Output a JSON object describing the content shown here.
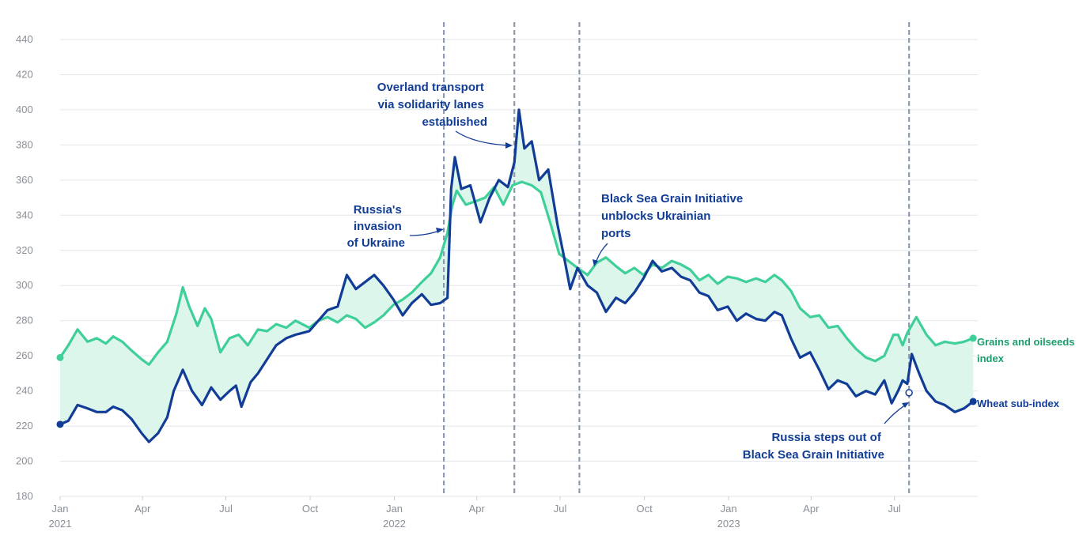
{
  "chart_data": {
    "type": "line",
    "x_axis": {
      "ticks": [
        {
          "date": "2021-01-01",
          "label": "Jan",
          "sub": "2021"
        },
        {
          "date": "2021-04-01",
          "label": "Apr",
          "sub": ""
        },
        {
          "date": "2021-07-01",
          "label": "Jul",
          "sub": ""
        },
        {
          "date": "2021-10-01",
          "label": "Oct",
          "sub": ""
        },
        {
          "date": "2022-01-01",
          "label": "Jan",
          "sub": "2022"
        },
        {
          "date": "2022-04-01",
          "label": "Apr",
          "sub": ""
        },
        {
          "date": "2022-07-01",
          "label": "Jul",
          "sub": ""
        },
        {
          "date": "2022-10-01",
          "label": "Oct",
          "sub": ""
        },
        {
          "date": "2023-01-01",
          "label": "Jan",
          "sub": "2023"
        },
        {
          "date": "2023-04-01",
          "label": "Apr",
          "sub": ""
        },
        {
          "date": "2023-07-01",
          "label": "Jul",
          "sub": ""
        }
      ],
      "range": [
        "2021-01-01",
        "2023-09-30"
      ]
    },
    "y_axis": {
      "ticks": [
        180,
        200,
        220,
        240,
        260,
        280,
        300,
        320,
        340,
        360,
        380,
        400,
        420,
        440
      ],
      "ylim": [
        180,
        440
      ]
    },
    "grid": true,
    "series": [
      {
        "name": "Grains and oilseeds index",
        "label_lines": [
          "Grains and oilseeds",
          "index"
        ],
        "color": "#3fcf98",
        "points": [
          [
            "2021-01-01",
            259
          ],
          [
            "2021-01-10",
            266
          ],
          [
            "2021-01-20",
            275
          ],
          [
            "2021-01-31",
            268
          ],
          [
            "2021-02-10",
            270
          ],
          [
            "2021-02-20",
            267
          ],
          [
            "2021-02-28",
            271
          ],
          [
            "2021-03-10",
            268
          ],
          [
            "2021-03-20",
            263
          ],
          [
            "2021-03-31",
            258
          ],
          [
            "2021-04-08",
            255
          ],
          [
            "2021-04-18",
            262
          ],
          [
            "2021-04-28",
            268
          ],
          [
            "2021-05-08",
            284
          ],
          [
            "2021-05-15",
            299
          ],
          [
            "2021-05-22",
            288
          ],
          [
            "2021-05-31",
            277
          ],
          [
            "2021-06-08",
            287
          ],
          [
            "2021-06-15",
            281
          ],
          [
            "2021-06-25",
            262
          ],
          [
            "2021-07-05",
            270
          ],
          [
            "2021-07-15",
            272
          ],
          [
            "2021-07-25",
            266
          ],
          [
            "2021-08-05",
            275
          ],
          [
            "2021-08-15",
            274
          ],
          [
            "2021-08-25",
            278
          ],
          [
            "2021-09-05",
            276
          ],
          [
            "2021-09-15",
            280
          ],
          [
            "2021-09-30",
            276
          ],
          [
            "2021-10-10",
            280
          ],
          [
            "2021-10-20",
            282
          ],
          [
            "2021-10-31",
            279
          ],
          [
            "2021-11-10",
            283
          ],
          [
            "2021-11-20",
            281
          ],
          [
            "2021-11-30",
            276
          ],
          [
            "2021-12-10",
            279
          ],
          [
            "2021-12-20",
            283
          ],
          [
            "2021-12-31",
            289
          ],
          [
            "2022-01-10",
            292
          ],
          [
            "2022-01-20",
            296
          ],
          [
            "2022-01-31",
            302
          ],
          [
            "2022-02-10",
            307
          ],
          [
            "2022-02-20",
            316
          ],
          [
            "2022-02-28",
            330
          ],
          [
            "2022-03-05",
            345
          ],
          [
            "2022-03-10",
            354
          ],
          [
            "2022-03-20",
            346
          ],
          [
            "2022-03-31",
            348
          ],
          [
            "2022-04-10",
            350
          ],
          [
            "2022-04-20",
            356
          ],
          [
            "2022-04-30",
            346
          ],
          [
            "2022-05-10",
            357
          ],
          [
            "2022-05-20",
            359
          ],
          [
            "2022-05-31",
            357
          ],
          [
            "2022-06-10",
            353
          ],
          [
            "2022-06-20",
            336
          ],
          [
            "2022-06-30",
            318
          ],
          [
            "2022-07-10",
            314
          ],
          [
            "2022-07-20",
            310
          ],
          [
            "2022-07-31",
            306
          ],
          [
            "2022-08-10",
            313
          ],
          [
            "2022-08-20",
            316
          ],
          [
            "2022-08-31",
            311
          ],
          [
            "2022-09-10",
            307
          ],
          [
            "2022-09-20",
            310
          ],
          [
            "2022-09-30",
            306
          ],
          [
            "2022-10-10",
            312
          ],
          [
            "2022-10-20",
            310
          ],
          [
            "2022-10-31",
            314
          ],
          [
            "2022-11-10",
            312
          ],
          [
            "2022-11-20",
            309
          ],
          [
            "2022-11-30",
            303
          ],
          [
            "2022-12-10",
            306
          ],
          [
            "2022-12-20",
            301
          ],
          [
            "2022-12-31",
            305
          ],
          [
            "2023-01-10",
            304
          ],
          [
            "2023-01-20",
            302
          ],
          [
            "2023-01-31",
            304
          ],
          [
            "2023-02-10",
            302
          ],
          [
            "2023-02-20",
            306
          ],
          [
            "2023-02-28",
            303
          ],
          [
            "2023-03-10",
            297
          ],
          [
            "2023-03-20",
            287
          ],
          [
            "2023-03-31",
            282
          ],
          [
            "2023-04-10",
            283
          ],
          [
            "2023-04-20",
            276
          ],
          [
            "2023-04-30",
            277
          ],
          [
            "2023-05-10",
            270
          ],
          [
            "2023-05-20",
            264
          ],
          [
            "2023-05-31",
            259
          ],
          [
            "2023-06-10",
            257
          ],
          [
            "2023-06-20",
            260
          ],
          [
            "2023-06-30",
            272
          ],
          [
            "2023-07-05",
            272
          ],
          [
            "2023-07-10",
            266
          ],
          [
            "2023-07-15",
            273
          ],
          [
            "2023-07-25",
            282
          ],
          [
            "2023-08-05",
            272
          ],
          [
            "2023-08-15",
            266
          ],
          [
            "2023-08-25",
            268
          ],
          [
            "2023-09-05",
            267
          ],
          [
            "2023-09-15",
            268
          ],
          [
            "2023-09-25",
            270
          ]
        ]
      },
      {
        "name": "Wheat sub-index",
        "label_lines": [
          "Wheat sub-index"
        ],
        "color": "#123d96",
        "points": [
          [
            "2021-01-01",
            221
          ],
          [
            "2021-01-10",
            223
          ],
          [
            "2021-01-20",
            232
          ],
          [
            "2021-01-31",
            230
          ],
          [
            "2021-02-10",
            228
          ],
          [
            "2021-02-20",
            228
          ],
          [
            "2021-02-28",
            231
          ],
          [
            "2021-03-10",
            229
          ],
          [
            "2021-03-20",
            224
          ],
          [
            "2021-03-31",
            216
          ],
          [
            "2021-04-08",
            211
          ],
          [
            "2021-04-18",
            216
          ],
          [
            "2021-04-28",
            225
          ],
          [
            "2021-05-05",
            240
          ],
          [
            "2021-05-15",
            252
          ],
          [
            "2021-05-25",
            240
          ],
          [
            "2021-06-05",
            232
          ],
          [
            "2021-06-15",
            242
          ],
          [
            "2021-06-25",
            235
          ],
          [
            "2021-07-05",
            240
          ],
          [
            "2021-07-12",
            243
          ],
          [
            "2021-07-18",
            231
          ],
          [
            "2021-07-28",
            245
          ],
          [
            "2021-08-05",
            250
          ],
          [
            "2021-08-15",
            258
          ],
          [
            "2021-08-25",
            266
          ],
          [
            "2021-09-05",
            270
          ],
          [
            "2021-09-15",
            272
          ],
          [
            "2021-09-30",
            274
          ],
          [
            "2021-10-10",
            280
          ],
          [
            "2021-10-20",
            286
          ],
          [
            "2021-10-31",
            288
          ],
          [
            "2021-11-10",
            306
          ],
          [
            "2021-11-20",
            298
          ],
          [
            "2021-11-30",
            302
          ],
          [
            "2021-12-10",
            306
          ],
          [
            "2021-12-20",
            300
          ],
          [
            "2021-12-31",
            292
          ],
          [
            "2022-01-10",
            283
          ],
          [
            "2022-01-20",
            290
          ],
          [
            "2022-01-31",
            295
          ],
          [
            "2022-02-10",
            289
          ],
          [
            "2022-02-20",
            290
          ],
          [
            "2022-02-28",
            293
          ],
          [
            "2022-03-04",
            355
          ],
          [
            "2022-03-08",
            373
          ],
          [
            "2022-03-15",
            355
          ],
          [
            "2022-03-25",
            357
          ],
          [
            "2022-04-05",
            336
          ],
          [
            "2022-04-15",
            350
          ],
          [
            "2022-04-25",
            360
          ],
          [
            "2022-05-05",
            356
          ],
          [
            "2022-05-12",
            370
          ],
          [
            "2022-05-17",
            400
          ],
          [
            "2022-05-23",
            378
          ],
          [
            "2022-05-31",
            382
          ],
          [
            "2022-06-08",
            360
          ],
          [
            "2022-06-18",
            366
          ],
          [
            "2022-06-28",
            335
          ],
          [
            "2022-07-05",
            317
          ],
          [
            "2022-07-12",
            298
          ],
          [
            "2022-07-20",
            310
          ],
          [
            "2022-07-31",
            300
          ],
          [
            "2022-08-10",
            296
          ],
          [
            "2022-08-20",
            285
          ],
          [
            "2022-08-31",
            293
          ],
          [
            "2022-09-10",
            290
          ],
          [
            "2022-09-20",
            296
          ],
          [
            "2022-09-30",
            304
          ],
          [
            "2022-10-10",
            314
          ],
          [
            "2022-10-20",
            308
          ],
          [
            "2022-10-31",
            310
          ],
          [
            "2022-11-10",
            305
          ],
          [
            "2022-11-20",
            303
          ],
          [
            "2022-11-30",
            296
          ],
          [
            "2022-12-10",
            294
          ],
          [
            "2022-12-20",
            286
          ],
          [
            "2022-12-31",
            288
          ],
          [
            "2023-01-10",
            280
          ],
          [
            "2023-01-20",
            284
          ],
          [
            "2023-01-31",
            281
          ],
          [
            "2023-02-10",
            280
          ],
          [
            "2023-02-20",
            285
          ],
          [
            "2023-02-28",
            283
          ],
          [
            "2023-03-10",
            270
          ],
          [
            "2023-03-20",
            259
          ],
          [
            "2023-03-31",
            262
          ],
          [
            "2023-04-10",
            252
          ],
          [
            "2023-04-20",
            241
          ],
          [
            "2023-04-30",
            246
          ],
          [
            "2023-05-10",
            244
          ],
          [
            "2023-05-20",
            237
          ],
          [
            "2023-05-31",
            240
          ],
          [
            "2023-06-10",
            238
          ],
          [
            "2023-06-20",
            246
          ],
          [
            "2023-06-28",
            233
          ],
          [
            "2023-07-05",
            240
          ],
          [
            "2023-07-10",
            246
          ],
          [
            "2023-07-15",
            244
          ],
          [
            "2023-07-20",
            261
          ],
          [
            "2023-07-28",
            250
          ],
          [
            "2023-08-05",
            240
          ],
          [
            "2023-08-15",
            234
          ],
          [
            "2023-08-25",
            232
          ],
          [
            "2023-09-05",
            228
          ],
          [
            "2023-09-15",
            230
          ],
          [
            "2023-09-25",
            234
          ]
        ]
      }
    ],
    "events": [
      {
        "date": "2022-02-24",
        "label_lines": [
          "Russia's",
          "invasion",
          "of Ukraine"
        ]
      },
      {
        "date": "2022-05-12",
        "label_lines": [
          "Overland transport",
          "via solidarity lanes",
          "established"
        ]
      },
      {
        "date": "2022-07-22",
        "label_lines": [
          "Black Sea Grain Initiative",
          "unblocks Ukrainian",
          "ports"
        ]
      },
      {
        "date": "2023-07-17",
        "label_lines": [
          "Russia steps out of",
          "Black Sea Grain Initiative"
        ]
      }
    ]
  }
}
